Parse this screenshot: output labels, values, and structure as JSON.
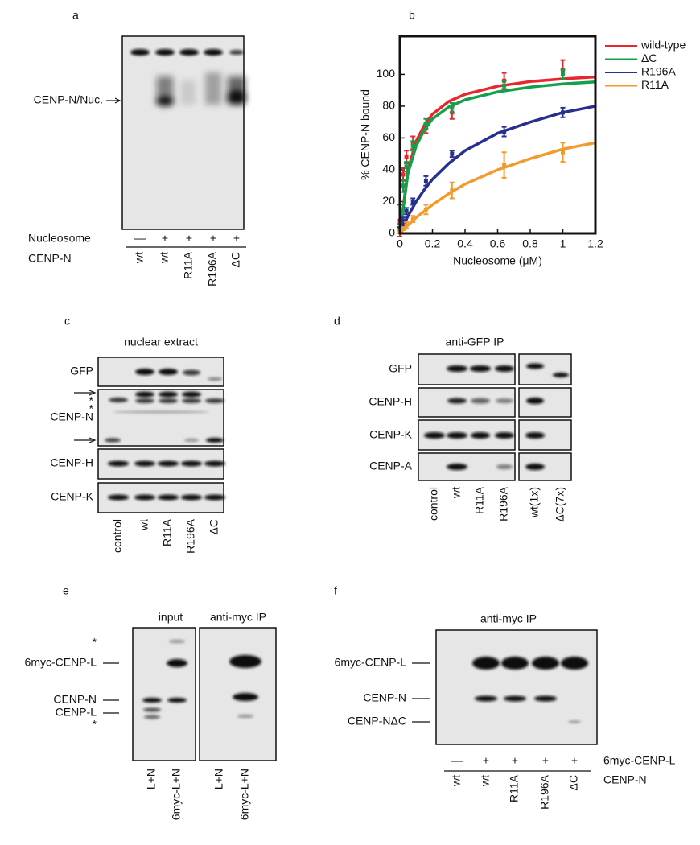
{
  "panels": {
    "a": {
      "label": "a",
      "band_label": "CENP-N/Nuc.",
      "row_labels": [
        "Nucleosome",
        "CENP-N"
      ],
      "nucleosome": [
        "—",
        "+",
        "+",
        "+",
        "+"
      ],
      "cenpn": [
        "wt",
        "wt",
        "R11A",
        "R196A",
        "ΔC"
      ]
    },
    "c": {
      "label": "c",
      "title": "nuclear extract",
      "blots": [
        "GFP",
        "CENP-N",
        "CENP-H",
        "CENP-K"
      ],
      "asterisks": [
        "*",
        "*"
      ],
      "lanes": [
        "control",
        "wt",
        "R11A",
        "R196A",
        "ΔC"
      ]
    },
    "d": {
      "label": "d",
      "title": "anti-GFP IP",
      "blots": [
        "GFP",
        "CENP-H",
        "CENP-K",
        "CENP-A"
      ],
      "lanes": [
        "control",
        "wt",
        "R11A",
        "R196A",
        "wt(1x)",
        "ΔC(7x)"
      ]
    },
    "e": {
      "label": "e",
      "titles": [
        "input",
        "anti-myc IP"
      ],
      "markers": [
        "*",
        "6myc-CENP-L",
        "CENP-N",
        "CENP-L",
        "*"
      ],
      "lanes": [
        "L+N",
        "6myc-L+N",
        "L+N",
        "6myc-L+N"
      ]
    },
    "f": {
      "label": "f",
      "title": "anti-myc IP",
      "markers": [
        "6myc-CENP-L",
        "CENP-N",
        "CENP-NΔC"
      ],
      "row_labels": [
        "6myc-CENP-L",
        "CENP-N"
      ],
      "myc": [
        "—",
        "+",
        "+",
        "+",
        "+"
      ],
      "cenpn": [
        "wt",
        "wt",
        "R11A",
        "R196A",
        "ΔC"
      ]
    }
  },
  "chart_data": {
    "type": "line",
    "panel_label": "b",
    "x_label": "Nucleosome (μM)",
    "y_label": "% CENP-N bound",
    "x": [
      0,
      0.02,
      0.04,
      0.08,
      0.16,
      0.32,
      0.64,
      1.0
    ],
    "fit_x": [
      0,
      0.05,
      0.1,
      0.15,
      0.2,
      0.3,
      0.4,
      0.6,
      0.8,
      1.0,
      1.2
    ],
    "series": [
      {
        "name": "wild-type",
        "color": "#e8262b",
        "values": [
          8,
          37,
          48,
          57,
          66,
          76,
          96,
          103
        ],
        "errors": [
          10,
          4,
          4,
          4,
          3,
          4,
          5,
          6
        ],
        "fit_values": [
          0,
          40,
          58,
          68,
          75,
          83,
          87.5,
          92.6,
          95.5,
          97.2,
          98.4
        ]
      },
      {
        "name": "ΔC",
        "color": "#12a04a",
        "values": [
          3,
          30,
          42,
          55,
          69,
          79,
          93,
          100
        ],
        "errors": [
          3,
          4,
          3,
          3,
          3,
          3,
          3,
          3
        ],
        "fit_values": [
          0,
          38,
          55,
          65,
          72,
          79.5,
          84,
          89,
          92,
          94,
          95.3
        ]
      },
      {
        "name": "R196A",
        "color": "#27308f",
        "values": [
          2,
          8,
          14,
          20,
          33,
          50,
          64,
          76
        ],
        "errors": [
          2,
          2,
          2,
          2,
          3,
          2,
          3,
          3
        ],
        "fit_values": [
          0,
          11,
          20,
          27.5,
          34,
          44,
          52,
          63,
          70,
          76,
          80
        ]
      },
      {
        "name": "R11A",
        "color": "#f39a2c",
        "values": [
          1,
          3,
          5,
          9,
          15,
          27,
          43,
          51
        ],
        "errors": [
          1,
          1,
          2,
          2,
          3,
          5,
          8,
          6
        ],
        "fit_values": [
          0,
          5.3,
          10,
          14,
          18,
          25,
          31,
          40,
          47,
          53,
          57
        ]
      }
    ],
    "xlim": [
      0,
      1.2
    ],
    "ylim": [
      0,
      124
    ],
    "xticks": [
      0,
      0.2,
      0.4,
      0.6,
      0.8,
      1,
      1.2
    ],
    "yticks": [
      0,
      20,
      40,
      60,
      80,
      100
    ],
    "legend": "right"
  }
}
